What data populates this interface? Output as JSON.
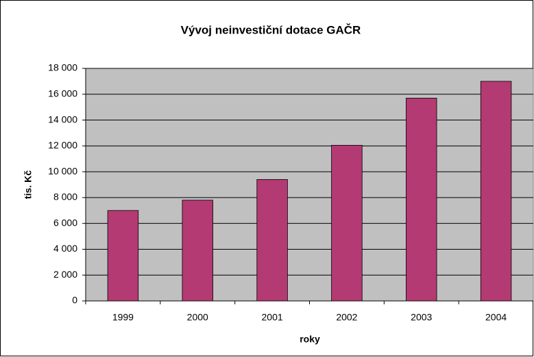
{
  "chart_data": {
    "type": "bar",
    "title": "Vývoj neinvestiční dotace GAČR",
    "x_label": "roky",
    "y_label": "tis. Kč",
    "categories": [
      "1999",
      "2000",
      "2001",
      "2002",
      "2003",
      "2004"
    ],
    "values": [
      7000,
      7800,
      9400,
      12050,
      15700,
      17000
    ],
    "color": "#b33a72",
    "ylim": [
      0,
      18000
    ],
    "yticks": [
      0,
      {
        "value": 2000,
        "label": "2 000"
      },
      {
        "value": 4000,
        "label": "4 000"
      },
      {
        "value": 6000,
        "label": "6 000"
      },
      {
        "value": 8000,
        "label": "8 000"
      },
      {
        "value": 10000,
        "label": "10 000"
      },
      {
        "value": 12000,
        "label": "12 000"
      },
      {
        "value": 14000,
        "label": "14 000"
      },
      {
        "value": 16000,
        "label": "16 000"
      },
      {
        "value": 18000,
        "label": "18 000"
      }
    ],
    "grid": true
  }
}
